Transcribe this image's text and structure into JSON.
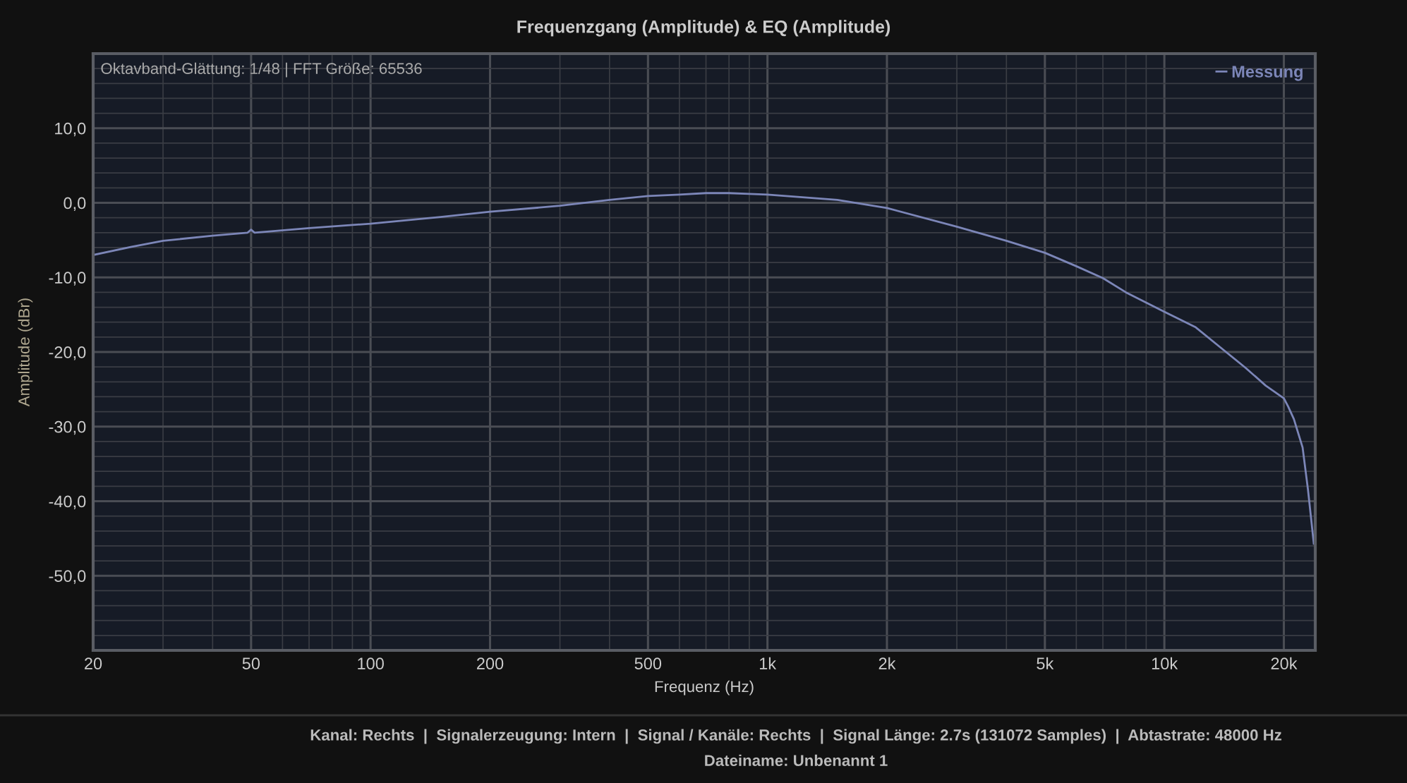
{
  "chart_data": {
    "type": "line",
    "title": "Frequenzgang (Amplitude) & EQ (Amplitude)",
    "xlabel": "Frequenz (Hz)",
    "ylabel": "Amplitude (dBr)",
    "log": "x",
    "grid": true,
    "legend": "top right",
    "xlim": [
      20,
      24000
    ],
    "ylim": [
      -60,
      20
    ],
    "xticks": [
      20,
      50,
      100,
      200,
      500,
      {
        "value": 1000,
        "label": "1k"
      },
      {
        "value": 2000,
        "label": "2k"
      },
      {
        "value": 5000,
        "label": "5k"
      },
      {
        "value": 10000,
        "label": "10k"
      },
      {
        "value": 20000,
        "label": "20k"
      }
    ],
    "yticks": [
      {
        "value": 10,
        "label": "10,0"
      },
      {
        "value": 0,
        "label": "0,0"
      },
      {
        "value": -10,
        "label": "-10,0"
      },
      {
        "value": -20,
        "label": "-20,0"
      },
      {
        "value": -30,
        "label": "-30,0"
      },
      {
        "value": -40,
        "label": "-40,0"
      },
      {
        "value": -50,
        "label": "-50,0"
      }
    ],
    "annotations": [
      "Oktavband-Glättung: 1/48 | FFT Größe: 65536",
      "Kanal: Rechts  |  Signalerzeugung: Intern  |  Signal / Kanäle: Rechts  |  Signal Länge: 2.7s (131072 Samples)  |  Abtastrate: 48000 Hz",
      "Dateiname: Unbenannt 1"
    ],
    "series": [
      {
        "name": "Messung",
        "color": "#7c86b8",
        "x": [
          20,
          25,
          30,
          40,
          49,
          50,
          51,
          70,
          100,
          150,
          200,
          300,
          400,
          500,
          600,
          700,
          800,
          900,
          1000,
          1500,
          2000,
          3000,
          4000,
          5000,
          6000,
          7000,
          8000,
          10000,
          12000,
          14000,
          16000,
          18000,
          20000,
          20500,
          21200,
          22300,
          23000,
          23800
        ],
        "values": [
          -7.0,
          -5.9,
          -5.1,
          -4.4,
          -4.0,
          -3.6,
          -4.0,
          -3.4,
          -2.8,
          -1.9,
          -1.2,
          -0.4,
          0.4,
          0.9,
          1.1,
          1.3,
          1.3,
          1.2,
          1.1,
          0.4,
          -0.7,
          -3.2,
          -5.1,
          -6.7,
          -8.5,
          -10.1,
          -12.0,
          -14.6,
          -16.7,
          -19.6,
          -22.1,
          -24.5,
          -26.2,
          -27.3,
          -29.0,
          -32.8,
          -38.4,
          -45.7
        ]
      }
    ]
  }
}
